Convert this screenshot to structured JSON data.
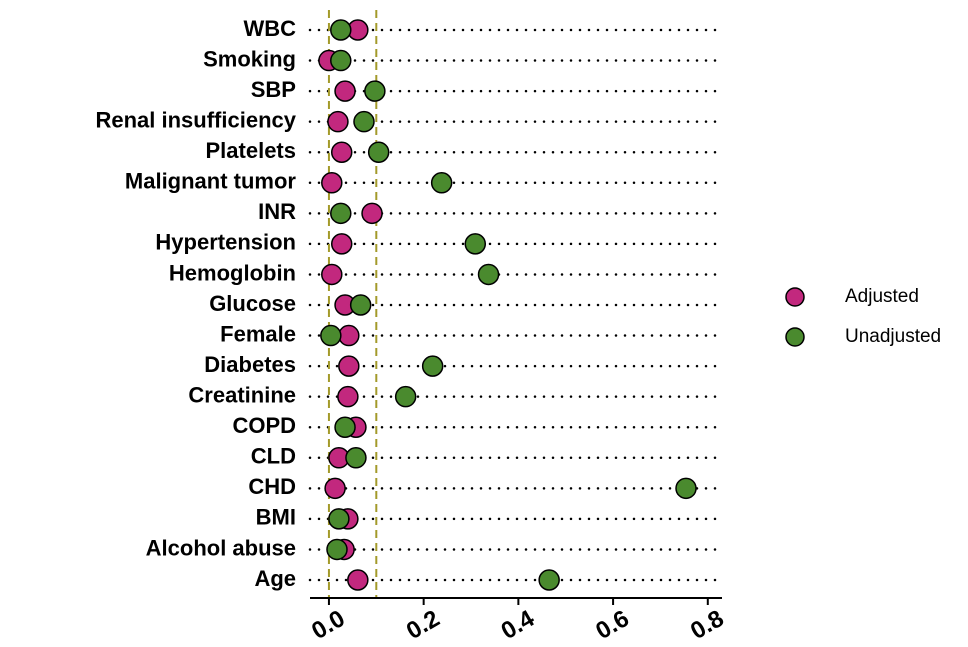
{
  "chart_data": {
    "type": "dotplot",
    "categories": [
      "WBC",
      "Smoking",
      "SBP",
      "Renal insufficiency",
      "Platelets",
      "Malignant tumor",
      "INR",
      "Hypertension",
      "Hemoglobin",
      "Glucose",
      "Female",
      "Diabetes",
      "Creatinine",
      "COPD",
      "CLD",
      "CHD",
      "BMI",
      "Alcohol abuse",
      "Age"
    ],
    "series": [
      {
        "name": "Adjusted",
        "color": "#c2287e",
        "values": [
          0.061,
          0.0,
          0.034,
          0.019,
          0.027,
          0.006,
          0.091,
          0.027,
          0.006,
          0.034,
          0.042,
          0.042,
          0.04,
          0.057,
          0.021,
          0.013,
          0.04,
          0.032,
          0.061
        ]
      },
      {
        "name": "Unadjusted",
        "color": "#4a8a2e",
        "values": [
          0.025,
          0.025,
          0.097,
          0.074,
          0.105,
          0.238,
          0.025,
          0.309,
          0.337,
          0.067,
          0.004,
          0.219,
          0.162,
          0.034,
          0.057,
          0.754,
          0.021,
          0.017,
          0.465
        ]
      }
    ],
    "xlim": [
      -0.04,
      0.83
    ],
    "xticks": [
      {
        "value": 0,
        "label": "0.0"
      },
      0.2,
      0.4,
      0.6,
      0.8
    ],
    "reference_lines": [
      0,
      0.1
    ],
    "legend": "right"
  }
}
